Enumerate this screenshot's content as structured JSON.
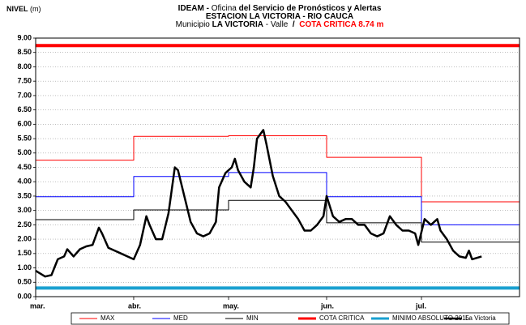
{
  "chart_data": {
    "type": "line",
    "title_lines": [
      [
        {
          "text": "IDEAM -",
          "bold": true
        },
        {
          "text": " Oficina ",
          "bold": false
        },
        {
          "text": "del Servicio de Pronósticos y Alertas",
          "bold": true
        }
      ],
      [
        {
          "text": "ESTACION LA VICTORIA - RIO CAUCA",
          "bold": true
        }
      ],
      [
        {
          "text": "Municipio ",
          "bold": false
        },
        {
          "text": "LA VICTORIA",
          "bold": true
        },
        {
          "text": " - Valle ",
          "bold": false
        },
        {
          "text": " / ",
          "bold": true
        },
        {
          "text": " COTA CRITICA 8.74 m",
          "bold": true,
          "color": "#ff0000"
        }
      ]
    ],
    "ylabel": [
      {
        "text": "NIVEL",
        "bold": true
      },
      {
        "text": " (m)",
        "bold": false
      }
    ],
    "xlim": [
      0,
      153
    ],
    "xticks": [
      {
        "value": 0,
        "label": "mar."
      },
      {
        "value": 31,
        "label": "abr."
      },
      {
        "value": 61,
        "label": "may."
      },
      {
        "value": 92,
        "label": "jun."
      },
      {
        "value": 122,
        "label": "jul."
      }
    ],
    "ylim": [
      0,
      9
    ],
    "yticks": [
      {
        "value": 0,
        "label": "0.00"
      },
      {
        "value": 0.5,
        "label": "0.50"
      },
      {
        "value": 1,
        "label": "1.00"
      },
      {
        "value": 1.5,
        "label": "1.50"
      },
      {
        "value": 2,
        "label": "2.00"
      },
      {
        "value": 2.5,
        "label": "2.50"
      },
      {
        "value": 3,
        "label": "3.00"
      },
      {
        "value": 3.5,
        "label": "3.50"
      },
      {
        "value": 4,
        "label": "4.00"
      },
      {
        "value": 4.5,
        "label": "4.50"
      },
      {
        "value": 5,
        "label": "5.00"
      },
      {
        "value": 5.5,
        "label": "5.50"
      },
      {
        "value": 6,
        "label": "6.00"
      },
      {
        "value": 6.5,
        "label": "6.50"
      },
      {
        "value": 7,
        "label": "7.00"
      },
      {
        "value": 7.5,
        "label": "7.50"
      },
      {
        "value": 8,
        "label": "8.00"
      },
      {
        "value": 8.5,
        "label": "8.50"
      },
      {
        "value": 9,
        "label": "9.00"
      }
    ],
    "grid": true,
    "legend": "bottom",
    "series": [
      {
        "name": "MAX",
        "color": "#ff0000",
        "line_width": 1,
        "x": [
          0,
          31,
          31,
          61,
          61,
          92,
          92,
          122,
          122,
          153
        ],
        "values": [
          4.75,
          4.75,
          5.58,
          5.58,
          5.6,
          5.6,
          4.85,
          4.85,
          3.3,
          3.3
        ]
      },
      {
        "name": "MED",
        "color": "#0000ff",
        "line_width": 1,
        "x": [
          0,
          31,
          31,
          61,
          61,
          92,
          92,
          122,
          122,
          153
        ],
        "values": [
          3.48,
          3.48,
          4.18,
          4.18,
          4.32,
          4.32,
          3.48,
          3.48,
          2.5,
          2.5
        ]
      },
      {
        "name": "MIN",
        "color": "#000000",
        "line_width": 1,
        "x": [
          0,
          31,
          31,
          61,
          61,
          92,
          92,
          122,
          122,
          153
        ],
        "values": [
          2.68,
          2.68,
          3.02,
          3.02,
          3.35,
          3.35,
          2.57,
          2.57,
          1.9,
          1.9
        ]
      },
      {
        "name": "COTA CRITICA",
        "color": "#ff0000",
        "line_width": 4,
        "x": [
          0,
          153
        ],
        "values": [
          8.74,
          8.74
        ]
      },
      {
        "name": "MINIMO ABSOLUTO 2015",
        "color": "#1aa0d0",
        "line_width": 4,
        "x": [
          0,
          153
        ],
        "values": [
          0.3,
          0.3
        ]
      },
      {
        "name": "La Victoria",
        "color": "#000000",
        "line_width": 2.5,
        "x": [
          0,
          3,
          5,
          7,
          9,
          10,
          12,
          14,
          16,
          18,
          20,
          21,
          23,
          25,
          27,
          29,
          31,
          33,
          35,
          36,
          38,
          40,
          42,
          44,
          45,
          47,
          49,
          51,
          53,
          55,
          57,
          58,
          60,
          62,
          63,
          64,
          66,
          68,
          69,
          70,
          72,
          73,
          75,
          77,
          79,
          81,
          83,
          85,
          87,
          89,
          91,
          92,
          94,
          96,
          98,
          100,
          102,
          104,
          106,
          108,
          110,
          112,
          114,
          116,
          118,
          120,
          121,
          123,
          125,
          127,
          128,
          130,
          132,
          134,
          136,
          137,
          138,
          141
        ],
        "values": [
          0.9,
          0.7,
          0.75,
          1.3,
          1.4,
          1.65,
          1.4,
          1.65,
          1.75,
          1.8,
          2.4,
          2.2,
          1.7,
          1.6,
          1.5,
          1.4,
          1.3,
          1.8,
          2.8,
          2.5,
          2.0,
          2.0,
          2.9,
          4.5,
          4.4,
          3.5,
          2.6,
          2.2,
          2.1,
          2.2,
          2.6,
          3.8,
          4.3,
          4.5,
          4.8,
          4.4,
          4.0,
          3.8,
          4.5,
          5.5,
          5.8,
          5.3,
          4.2,
          3.5,
          3.3,
          3.0,
          2.7,
          2.3,
          2.3,
          2.5,
          2.8,
          3.5,
          2.8,
          2.6,
          2.7,
          2.7,
          2.5,
          2.5,
          2.2,
          2.1,
          2.2,
          2.8,
          2.5,
          2.3,
          2.3,
          2.2,
          1.8,
          2.7,
          2.5,
          2.7,
          2.3,
          2.0,
          1.6,
          1.4,
          1.35,
          1.6,
          1.3,
          1.4
        ]
      }
    ]
  }
}
